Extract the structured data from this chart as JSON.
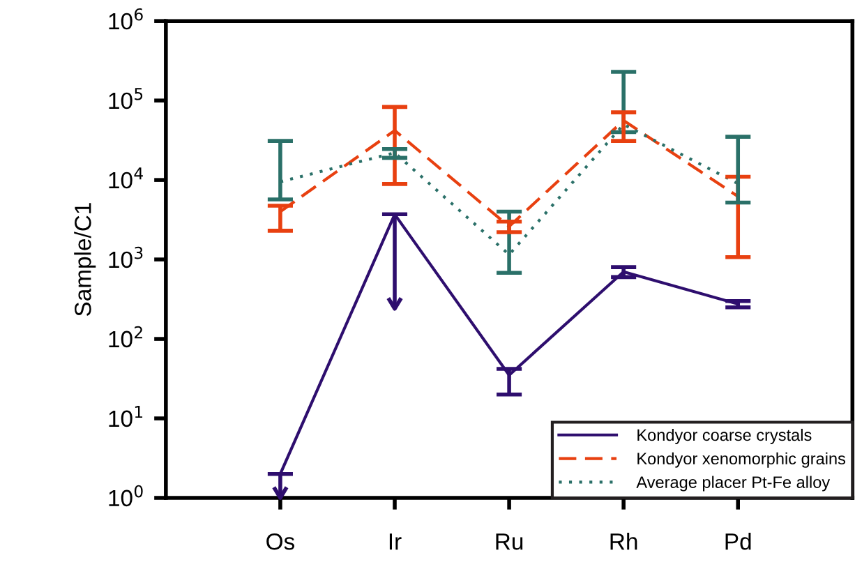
{
  "chart_data": {
    "type": "line",
    "ylabel": "Sample/C1",
    "categories": [
      "Os",
      "Ir",
      "Ru",
      "Rh",
      "Pd"
    ],
    "series": [
      {
        "name": "Kondyor coarse crystals",
        "color": "#2e0e6e",
        "line_style": "solid",
        "values": [
          2,
          3700,
          35,
          700,
          275
        ],
        "errors": [
          [
            1,
            2
          ],
          [
            240,
            3700
          ],
          [
            20,
            42
          ],
          [
            600,
            800
          ],
          [
            250,
            300
          ]
        ]
      },
      {
        "name": "Kondyor xenomorphic grains",
        "color": "#e84010",
        "line_style": "dashed",
        "values": [
          4000,
          42000,
          2600,
          56000,
          6200
        ],
        "errors": [
          [
            2300,
            4750
          ],
          [
            8900,
            83000
          ],
          [
            2200,
            3000
          ],
          [
            31000,
            71000
          ],
          [
            1070,
            11000
          ]
        ]
      },
      {
        "name": "Average placer Pt-Fe alloy",
        "color": "#2a7068",
        "line_style": "dotted",
        "values": [
          9500,
          22000,
          1150,
          50000,
          9000
        ],
        "errors": [
          [
            5700,
            31000
          ],
          [
            19000,
            24500
          ],
          [
            680,
            4000
          ],
          [
            40000,
            230000
          ],
          [
            5200,
            35000
          ]
        ]
      }
    ],
    "log": "y",
    "ylim": [
      1,
      1000000
    ],
    "yticks": [
      {
        "value": 1,
        "label": "10$^{0}$"
      },
      {
        "value": 10,
        "label": "10$^{1}$"
      },
      {
        "value": 100,
        "label": "10$^{2}$"
      },
      {
        "value": 1000,
        "label": "10$^{3}$"
      },
      {
        "value": 10000,
        "label": "10$^{4}$"
      },
      {
        "value": 100000,
        "label": "10$^{5}$"
      },
      {
        "value": 1000000,
        "label": "10$^{6}$"
      }
    ],
    "grid": false,
    "legend": "bottom right",
    "marker": "none"
  }
}
